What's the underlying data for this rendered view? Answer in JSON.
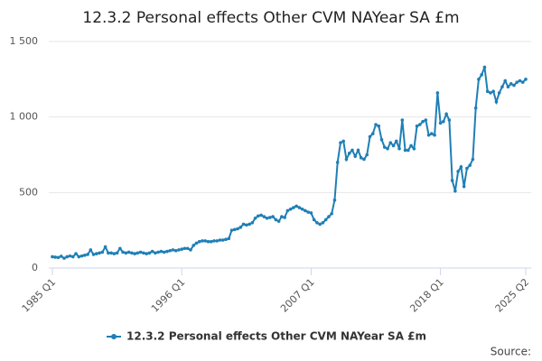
{
  "chart_data": {
    "type": "line",
    "title": "12.3.2 Personal effects Other CVM NAYear SA £m",
    "source_label": "Source:",
    "categories": [
      "1985 Q1",
      null,
      null,
      null,
      null,
      null,
      null,
      null,
      null,
      null,
      null,
      null,
      null,
      null,
      null,
      null,
      null,
      null,
      null,
      null,
      null,
      null,
      null,
      null,
      null,
      null,
      null,
      null,
      null,
      null,
      null,
      null,
      null,
      null,
      null,
      null,
      null,
      null,
      null,
      null,
      null,
      null,
      null,
      null,
      "1996 Q1",
      null,
      null,
      null,
      null,
      null,
      null,
      null,
      null,
      null,
      null,
      null,
      null,
      null,
      null,
      null,
      null,
      null,
      null,
      null,
      null,
      null,
      null,
      null,
      null,
      null,
      null,
      null,
      null,
      null,
      null,
      null,
      null,
      null,
      null,
      null,
      null,
      null,
      null,
      null,
      null,
      null,
      null,
      null,
      "2007 Q1",
      null,
      null,
      null,
      null,
      null,
      null,
      null,
      null,
      null,
      null,
      null,
      null,
      null,
      null,
      null,
      null,
      null,
      null,
      null,
      null,
      null,
      null,
      null,
      null,
      null,
      null,
      null,
      null,
      null,
      null,
      null,
      null,
      null,
      null,
      null,
      null,
      null,
      null,
      null,
      null,
      null,
      null,
      null,
      "2018 Q1",
      null,
      null,
      null,
      null,
      null,
      null,
      null,
      null,
      null,
      null,
      null,
      null,
      null,
      null,
      null,
      null,
      null,
      null,
      null,
      null,
      null,
      null,
      null,
      null,
      null,
      null,
      null,
      null,
      "2025 Q2"
    ],
    "series": [
      {
        "name": "12.3.2 Personal effects Other CVM NAYear SA £m",
        "color": "#1f7fb6",
        "values": [
          75,
          72,
          70,
          78,
          65,
          75,
          80,
          75,
          95,
          75,
          80,
          85,
          90,
          120,
          90,
          95,
          100,
          105,
          140,
          100,
          100,
          95,
          100,
          130,
          105,
          100,
          105,
          100,
          95,
          100,
          105,
          100,
          95,
          100,
          110,
          100,
          105,
          110,
          105,
          110,
          115,
          120,
          115,
          120,
          125,
          130,
          130,
          120,
          150,
          165,
          175,
          180,
          180,
          175,
          175,
          180,
          180,
          185,
          185,
          190,
          195,
          250,
          255,
          260,
          270,
          290,
          285,
          290,
          300,
          330,
          345,
          350,
          340,
          330,
          335,
          340,
          320,
          310,
          340,
          335,
          380,
          390,
          400,
          410,
          400,
          390,
          380,
          370,
          365,
          320,
          300,
          290,
          300,
          320,
          340,
          360,
          450,
          700,
          830,
          840,
          720,
          760,
          780,
          740,
          780,
          730,
          720,
          750,
          870,
          890,
          950,
          940,
          850,
          800,
          790,
          830,
          810,
          840,
          790,
          980,
          780,
          780,
          810,
          790,
          940,
          950,
          970,
          980,
          880,
          890,
          880,
          1160,
          960,
          970,
          1020,
          980,
          580,
          510,
          640,
          670,
          540,
          660,
          680,
          720,
          1060,
          1250,
          1280,
          1330,
          1170,
          1160,
          1170,
          1100,
          1160,
          1200,
          1240,
          1200,
          1220,
          1210,
          1230,
          1240,
          1230,
          1250
        ]
      }
    ],
    "ylim": [
      0,
      1500
    ],
    "yticks": [
      0,
      500,
      {
        "value": 1000,
        "label": "1 000"
      },
      {
        "value": 1500,
        "label": "1 500"
      }
    ],
    "grid": true
  }
}
